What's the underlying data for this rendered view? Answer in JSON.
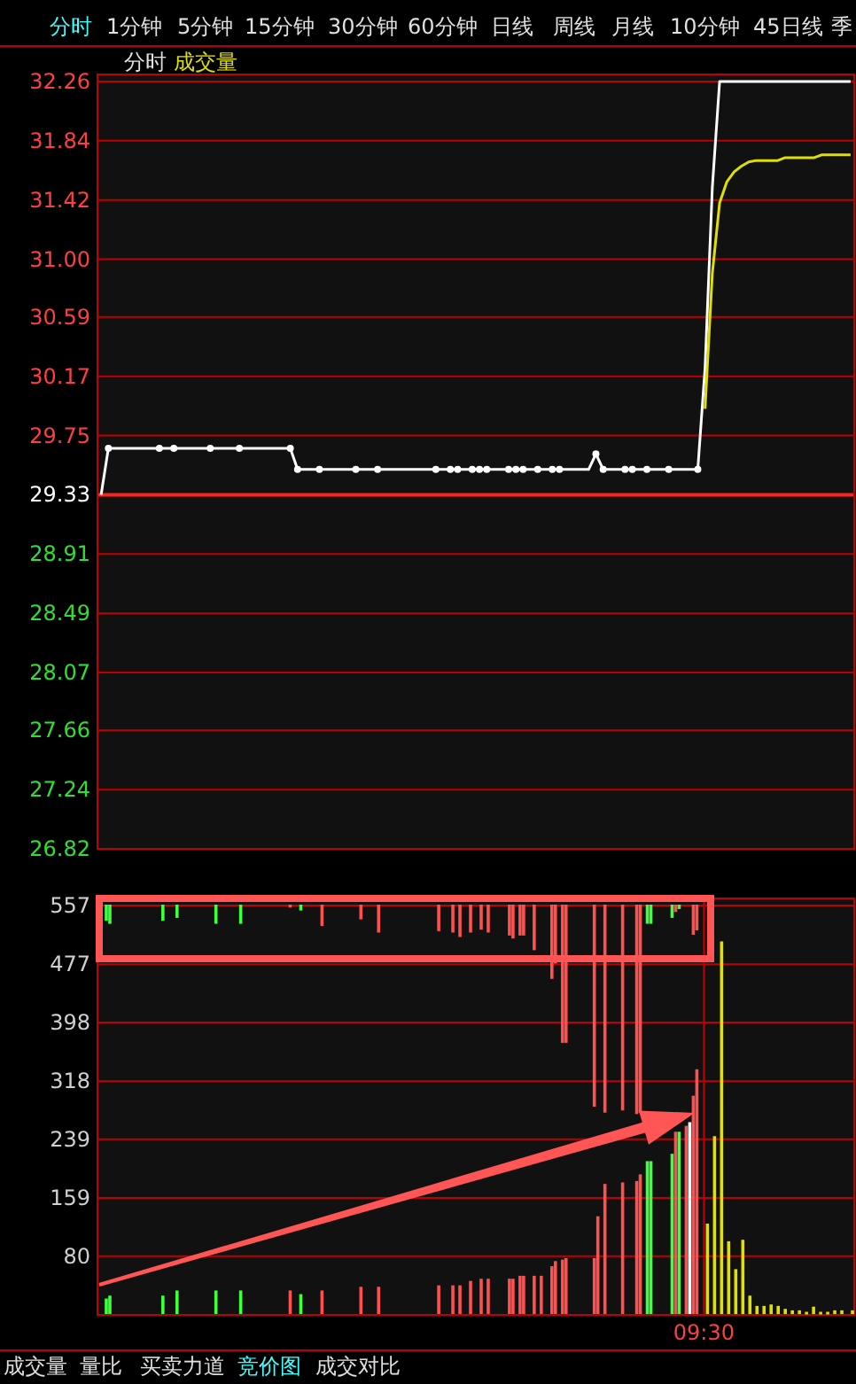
{
  "chart_data": [
    {
      "type": "line",
      "annotations": [
        "分时",
        "1分钟",
        "5分钟",
        "15分钟",
        "30分钟",
        "60分钟",
        "日线",
        "周线",
        "月线",
        "10分钟",
        "45日线",
        "季",
        "分时",
        "成交量",
        "成交量",
        "量比",
        "买卖力道",
        "竞价图",
        "成交对比"
      ],
      "categories": [
        null,
        null,
        null,
        null,
        null,
        null,
        null,
        null,
        null,
        null,
        null,
        null,
        null,
        null,
        null,
        null,
        null,
        null,
        null,
        null,
        null,
        null,
        null,
        null,
        null,
        null,
        null,
        null,
        null,
        null,
        null,
        null,
        null,
        null,
        null,
        null,
        null,
        null,
        null,
        null,
        null,
        null,
        null,
        null,
        null,
        null,
        null,
        null,
        null,
        null,
        null,
        null,
        null,
        null,
        null,
        null,
        null,
        null,
        null,
        null,
        null,
        null,
        null,
        null,
        null,
        null,
        null,
        null,
        null,
        null,
        null,
        null,
        null,
        null,
        null,
        null,
        null,
        null,
        null,
        null,
        null,
        null,
        null,
        null,
        null,
        null,
        null,
        null,
        null,
        null,
        null,
        null,
        null,
        null,
        null,
        null,
        null,
        null,
        null,
        null,
        null,
        null,
        null,
        null
      ],
      "ylim": [
        26.82,
        32.26
      ],
      "yticks": [
        26.82,
        27.24,
        27.66,
        28.07,
        28.49,
        28.91,
        29.33,
        29.75,
        30.17,
        30.59,
        {
          "value": 31,
          "label": "31.00"
        },
        31.42,
        31.84,
        32.26
      ],
      "tick_labels": "y",
      "grid": "y",
      "ref_lines": [
        {
          "axis": "y",
          "value": 29.33,
          "color": "#ff2020"
        }
      ],
      "series": [
        {
          "color": "#ffffff",
          "values": [
            29.33,
            29.66,
            29.66,
            29.66,
            29.66,
            29.66,
            29.66,
            29.66,
            29.66,
            29.66,
            29.66,
            29.66,
            29.66,
            29.66,
            29.66,
            29.66,
            29.66,
            29.66,
            29.66,
            29.66,
            29.66,
            29.66,
            29.66,
            29.66,
            29.66,
            29.66,
            29.66,
            29.51,
            29.51,
            29.51,
            29.51,
            29.51,
            29.51,
            29.51,
            29.51,
            29.51,
            29.51,
            29.51,
            29.51,
            29.51,
            29.51,
            29.51,
            29.51,
            29.51,
            29.51,
            29.51,
            29.51,
            29.51,
            29.51,
            29.51,
            29.51,
            29.51,
            29.51,
            29.51,
            29.51,
            29.51,
            29.51,
            29.51,
            29.51,
            29.51,
            29.51,
            29.51,
            29.51,
            29.51,
            29.51,
            29.51,
            29.51,
            29.51,
            29.62,
            29.51,
            29.51,
            29.51,
            29.51,
            29.51,
            29.51,
            29.51,
            29.51,
            29.51,
            29.51,
            29.51,
            29.51,
            29.51,
            29.51,
            30.23,
            31.51,
            32.26,
            32.26,
            32.26,
            32.26,
            32.26,
            32.26,
            32.26,
            32.26,
            32.26,
            32.26,
            32.26,
            32.26,
            32.26,
            32.26,
            32.26,
            32.26,
            32.26,
            32.26,
            32.26
          ]
        },
        {
          "type": "scatter",
          "marker": "circle",
          "color": "#ffffff",
          "values": [
            null,
            29.66,
            null,
            null,
            null,
            null,
            null,
            null,
            29.66,
            null,
            29.66,
            null,
            null,
            null,
            null,
            29.66,
            null,
            null,
            null,
            29.66,
            null,
            null,
            null,
            null,
            null,
            null,
            29.66,
            29.51,
            null,
            null,
            29.51,
            null,
            null,
            null,
            null,
            29.51,
            null,
            null,
            29.51,
            null,
            null,
            null,
            null,
            null,
            null,
            null,
            29.51,
            null,
            29.51,
            29.51,
            null,
            29.51,
            29.51,
            29.51,
            null,
            null,
            29.51,
            29.51,
            29.51,
            null,
            29.51,
            null,
            29.51,
            29.51,
            null,
            null,
            null,
            null,
            29.62,
            29.51,
            null,
            null,
            29.51,
            29.51,
            null,
            29.51,
            null,
            null,
            29.51,
            null,
            null,
            null,
            29.51,
            null,
            null,
            null,
            null,
            null,
            null,
            null,
            null,
            null,
            null,
            null,
            null,
            null,
            null,
            null,
            null,
            null,
            null,
            null,
            null,
            null
          ]
        },
        {
          "color": "#e0e000",
          "values": [
            null,
            null,
            null,
            null,
            null,
            null,
            null,
            null,
            null,
            null,
            null,
            null,
            null,
            null,
            null,
            null,
            null,
            null,
            null,
            null,
            null,
            null,
            null,
            null,
            null,
            null,
            null,
            null,
            null,
            null,
            null,
            null,
            null,
            null,
            null,
            null,
            null,
            null,
            null,
            null,
            null,
            null,
            null,
            null,
            null,
            null,
            null,
            null,
            null,
            null,
            null,
            null,
            null,
            null,
            null,
            null,
            null,
            null,
            null,
            null,
            null,
            null,
            null,
            null,
            null,
            null,
            null,
            null,
            null,
            null,
            null,
            null,
            null,
            null,
            null,
            null,
            null,
            null,
            null,
            null,
            null,
            null,
            null,
            29.94,
            30.9,
            31.4,
            31.55,
            31.62,
            31.66,
            31.69,
            31.7,
            31.7,
            31.7,
            31.7,
            31.72,
            31.72,
            31.72,
            31.72,
            31.72,
            31.74,
            31.74,
            31.74,
            31.74,
            31.74
          ]
        }
      ]
    },
    {
      "type": "bar",
      "categories": [
        null,
        null,
        null,
        null,
        null,
        null,
        null,
        null,
        null,
        null,
        null,
        null,
        null,
        null,
        null,
        null,
        null,
        null,
        null,
        null,
        null,
        null,
        null,
        null,
        null,
        null,
        null,
        null,
        null,
        null,
        null,
        null,
        null,
        null,
        null,
        null,
        null,
        null,
        null,
        null,
        null,
        null,
        null,
        null,
        null,
        null,
        null,
        null,
        null,
        null,
        null,
        null,
        null,
        null,
        null,
        null,
        null,
        null,
        null,
        null,
        null,
        null,
        null,
        null,
        null,
        null,
        null,
        null,
        null,
        null,
        null,
        null,
        null,
        null,
        null,
        null,
        null,
        null,
        null,
        null,
        null,
        null,
        null,
        null,
        null,
        null,
        null,
        null,
        null,
        null,
        null,
        null,
        null,
        null,
        null,
        null,
        null,
        null,
        null,
        null,
        null,
        null,
        null,
        null,
        null,
        null,
        null,
        null,
        null,
        null,
        null,
        null,
        null,
        null,
        null,
        null,
        null,
        null,
        null,
        null,
        null,
        null,
        null,
        null,
        null,
        null,
        null,
        null,
        null,
        null,
        null,
        null,
        null,
        null,
        null,
        null,
        null,
        null,
        null,
        null,
        null,
        null,
        null,
        null,
        null,
        null,
        null,
        null,
        null,
        null,
        null,
        null,
        null,
        null,
        null,
        null,
        null,
        null,
        null,
        null,
        null,
        null,
        null,
        null,
        null,
        null,
        null,
        null,
        null,
        null,
        null,
        "09:30",
        null,
        null,
        null,
        null,
        null,
        null,
        null,
        null,
        null,
        null,
        null,
        null,
        null,
        null,
        null,
        null,
        null,
        null,
        null,
        null,
        null,
        null,
        null,
        null,
        null,
        null,
        null,
        null,
        null,
        null,
        null,
        null,
        null,
        null,
        null,
        null,
        null,
        null,
        null,
        null,
        null,
        null
      ],
      "ylim": [
        0,
        557
      ],
      "yticks": [
        {
          "value": 0,
          "label": null
        },
        80,
        159,
        239,
        318,
        398,
        477,
        557
      ],
      "tick_labels": "xy",
      "grid": "y",
      "series": [
        {
          "values": [
            null,
            null,
            21,
            25,
            null,
            null,
            null,
            null,
            null,
            null,
            null,
            null,
            null,
            null,
            null,
            null,
            null,
            null,
            25,
            null,
            null,
            null,
            32,
            null,
            null,
            null,
            null,
            null,
            null,
            null,
            null,
            null,
            null,
            32,
            null,
            null,
            null,
            null,
            null,
            null,
            32,
            null,
            null,
            null,
            null,
            null,
            null,
            null,
            null,
            null,
            null,
            null,
            null,
            null,
            32,
            null,
            null,
            27,
            null,
            null,
            null,
            null,
            null,
            32,
            null,
            null,
            null,
            null,
            null,
            null,
            null,
            null,
            null,
            null,
            37,
            null,
            null,
            null,
            null,
            37,
            null,
            null,
            null,
            null,
            null,
            null,
            null,
            null,
            null,
            null,
            null,
            null,
            null,
            null,
            null,
            null,
            39,
            null,
            null,
            null,
            39,
            null,
            39,
            null,
            null,
            45,
            null,
            null,
            48,
            null,
            48,
            null,
            null,
            null,
            null,
            null,
            48,
            48,
            null,
            52,
            52,
            null,
            null,
            52,
            null,
            52,
            null,
            null,
            65,
            72,
            null,
            74,
            76,
            null,
            null,
            null,
            null,
            null,
            null,
            null,
            76,
            133,
            null,
            177,
            null,
            null,
            null,
            null,
            179,
            null,
            null,
            null,
            181,
            190,
            null,
            208,
            208,
            null,
            null,
            null,
            null,
            null,
            218,
            248,
            248,
            null,
            256,
            261,
            297,
            333,
            null,
            null,
            null,
            null,
            null,
            null,
            null,
            null,
            null,
            null,
            null,
            null,
            null,
            null,
            null,
            null,
            null,
            null,
            null,
            null,
            null,
            null,
            null,
            null,
            null,
            null,
            null,
            null,
            null,
            null,
            null,
            null,
            null,
            null,
            null,
            null,
            null,
            null,
            null,
            null,
            null,
            null,
            null,
            null
          ],
          "colors": [
            null,
            null,
            "#40ff40",
            "#40ff40",
            null,
            null,
            null,
            null,
            null,
            null,
            null,
            null,
            null,
            null,
            null,
            null,
            null,
            null,
            "#40ff40",
            null,
            null,
            null,
            "#40ff40",
            null,
            null,
            null,
            null,
            null,
            null,
            null,
            null,
            null,
            null,
            "#40ff40",
            null,
            null,
            null,
            null,
            null,
            null,
            "#40ff40",
            null,
            null,
            null,
            null,
            null,
            null,
            null,
            null,
            null,
            null,
            null,
            null,
            null,
            "#ff5050",
            null,
            null,
            "#40ff40",
            null,
            null,
            null,
            null,
            null,
            "#ff5050",
            null,
            null,
            null,
            null,
            null,
            null,
            null,
            null,
            null,
            null,
            "#ff5050",
            null,
            null,
            null,
            null,
            "#ff5050",
            null,
            null,
            null,
            null,
            null,
            null,
            null,
            null,
            null,
            null,
            null,
            null,
            null,
            null,
            null,
            null,
            "#ff5050",
            null,
            null,
            null,
            "#ff5050",
            null,
            "#ff5050",
            null,
            null,
            "#ff5050",
            null,
            null,
            "#ff5050",
            null,
            "#ff5050",
            null,
            null,
            null,
            null,
            null,
            "#ff5050",
            "#ff5050",
            null,
            "#ff5050",
            "#ff5050",
            null,
            null,
            "#ff5050",
            null,
            "#ff5050",
            null,
            null,
            "#ff5050",
            "#ff5050",
            null,
            "#ff5050",
            "#ff5050",
            null,
            null,
            null,
            null,
            null,
            null,
            null,
            "#ff5050",
            "#ff5050",
            null,
            "#ff5050",
            null,
            null,
            null,
            null,
            "#ff5050",
            null,
            null,
            null,
            "#ff5050",
            "#ff5050",
            null,
            "#40ff40",
            "#40ff40",
            null,
            null,
            null,
            null,
            null,
            "#40ff40",
            "#ff5050",
            "#40ff40",
            null,
            "#ff5050",
            "#ffffff",
            "#ff5050",
            "#ff5050",
            null,
            null,
            null,
            null,
            null,
            null,
            null,
            null,
            null,
            null,
            null,
            null,
            null,
            null,
            null,
            null,
            null,
            null,
            null,
            null,
            null,
            null,
            null,
            null,
            null,
            null,
            null,
            null,
            null,
            null,
            null,
            null,
            null,
            null,
            null,
            null,
            null,
            null,
            null,
            null,
            null,
            null,
            null,
            null
          ]
        },
        {
          "values": [
            null,
            null,
            -22,
            -26,
            null,
            null,
            null,
            null,
            null,
            null,
            null,
            null,
            null,
            null,
            null,
            null,
            null,
            null,
            -22,
            null,
            null,
            null,
            -18,
            null,
            null,
            null,
            null,
            null,
            null,
            null,
            null,
            null,
            null,
            -26,
            null,
            null,
            null,
            null,
            null,
            null,
            -26,
            null,
            null,
            null,
            null,
            null,
            null,
            null,
            null,
            null,
            null,
            null,
            null,
            null,
            -4,
            null,
            null,
            -8,
            null,
            null,
            null,
            null,
            null,
            -29,
            null,
            null,
            null,
            null,
            null,
            null,
            null,
            null,
            null,
            null,
            -20,
            null,
            null,
            null,
            null,
            -38,
            null,
            null,
            null,
            null,
            null,
            null,
            null,
            null,
            null,
            null,
            null,
            null,
            null,
            null,
            null,
            null,
            -36,
            null,
            null,
            null,
            -38,
            null,
            -44,
            null,
            null,
            -38,
            null,
            null,
            -34,
            null,
            -38,
            null,
            null,
            null,
            null,
            null,
            -42,
            -46,
            null,
            -42,
            -42,
            null,
            null,
            -62,
            null,
            null,
            null,
            null,
            -101,
            -80,
            null,
            -188,
            -188,
            null,
            null,
            null,
            null,
            null,
            null,
            null,
            -275,
            null,
            null,
            -283,
            null,
            null,
            null,
            null,
            -280,
            null,
            null,
            null,
            -285,
            -283,
            null,
            -26,
            -26,
            null,
            null,
            null,
            null,
            null,
            -18,
            -10,
            -6,
            null,
            null,
            null,
            -41,
            -35,
            null,
            null,
            null,
            null,
            null,
            null,
            null,
            null,
            null,
            null,
            null,
            null,
            null,
            null,
            null,
            null,
            null,
            null,
            null,
            null,
            null,
            null,
            null,
            null,
            null,
            null,
            null,
            null,
            null,
            null,
            null,
            null,
            null,
            null,
            null,
            null,
            null,
            null,
            null,
            null,
            null,
            null,
            null,
            null
          ],
          "base": [
            null,
            null,
            557,
            557,
            null,
            null,
            null,
            null,
            null,
            null,
            null,
            null,
            null,
            null,
            null,
            null,
            null,
            null,
            557,
            null,
            null,
            null,
            557,
            null,
            null,
            null,
            null,
            null,
            null,
            null,
            null,
            null,
            null,
            557,
            null,
            null,
            null,
            null,
            null,
            null,
            557,
            null,
            null,
            null,
            null,
            null,
            null,
            null,
            null,
            null,
            null,
            null,
            null,
            null,
            557,
            null,
            null,
            557,
            null,
            null,
            null,
            null,
            null,
            557,
            null,
            null,
            null,
            null,
            null,
            null,
            null,
            null,
            null,
            null,
            557,
            null,
            null,
            null,
            null,
            557,
            null,
            null,
            null,
            null,
            null,
            null,
            null,
            null,
            null,
            null,
            null,
            null,
            null,
            null,
            null,
            null,
            557,
            null,
            null,
            null,
            557,
            null,
            557,
            null,
            null,
            557,
            null,
            null,
            557,
            null,
            557,
            null,
            null,
            null,
            null,
            null,
            557,
            557,
            null,
            557,
            557,
            null,
            null,
            557,
            null,
            null,
            null,
            null,
            557,
            557,
            null,
            557,
            557,
            null,
            null,
            null,
            null,
            null,
            null,
            null,
            557,
            null,
            null,
            557,
            null,
            null,
            null,
            null,
            557,
            null,
            null,
            null,
            557,
            557,
            null,
            557,
            557,
            null,
            null,
            null,
            null,
            null,
            557,
            557,
            557,
            null,
            null,
            null,
            557,
            557,
            null,
            null,
            null,
            null,
            null,
            null,
            null,
            null,
            null,
            null,
            null,
            null,
            null,
            null,
            null,
            null,
            null,
            null,
            null,
            null,
            null,
            null,
            null,
            null,
            null,
            null,
            null,
            null,
            null,
            null,
            null,
            null,
            null,
            null,
            null,
            null,
            null,
            null,
            null,
            null,
            null,
            null,
            null,
            null
          ],
          "colors": [
            null,
            null,
            "#40ff40",
            "#40ff40",
            null,
            null,
            null,
            null,
            null,
            null,
            null,
            null,
            null,
            null,
            null,
            null,
            null,
            null,
            "#40ff40",
            null,
            null,
            null,
            "#40ff40",
            null,
            null,
            null,
            null,
            null,
            null,
            null,
            null,
            null,
            null,
            "#40ff40",
            null,
            null,
            null,
            null,
            null,
            null,
            "#40ff40",
            null,
            null,
            null,
            null,
            null,
            null,
            null,
            null,
            null,
            null,
            null,
            null,
            null,
            "#ff5050",
            null,
            null,
            "#40ff40",
            null,
            null,
            null,
            null,
            null,
            "#ff5050",
            null,
            null,
            null,
            null,
            null,
            null,
            null,
            null,
            null,
            null,
            "#ff5050",
            null,
            null,
            null,
            null,
            "#ff5050",
            null,
            null,
            null,
            null,
            null,
            null,
            null,
            null,
            null,
            null,
            null,
            null,
            null,
            null,
            null,
            null,
            "#ff5050",
            null,
            null,
            null,
            "#ff5050",
            null,
            "#ff5050",
            null,
            null,
            "#ff5050",
            null,
            null,
            "#ff5050",
            null,
            "#ff5050",
            null,
            null,
            null,
            null,
            null,
            "#ff5050",
            "#ff5050",
            null,
            "#ff5050",
            "#ff5050",
            null,
            null,
            "#ff5050",
            null,
            null,
            null,
            null,
            "#ff5050",
            "#ff5050",
            null,
            "#ff5050",
            "#ff5050",
            null,
            null,
            null,
            null,
            null,
            null,
            null,
            "#ff5050",
            null,
            null,
            "#ff5050",
            null,
            null,
            null,
            null,
            "#ff5050",
            null,
            null,
            null,
            "#ff5050",
            "#ff5050",
            null,
            "#40ff40",
            "#40ff40",
            null,
            null,
            null,
            null,
            null,
            "#40ff40",
            "#ff5050",
            "#40ff40",
            null,
            null,
            null,
            "#ff5050",
            "#ff5050",
            null,
            null,
            null,
            null,
            null,
            null,
            null,
            null,
            null,
            null,
            null,
            null,
            null,
            null,
            null,
            null,
            null,
            null,
            null,
            null,
            null,
            null,
            null,
            null,
            null,
            null,
            null,
            null,
            null,
            null,
            null,
            null,
            null,
            null,
            null,
            null,
            null,
            null,
            null,
            null,
            null,
            null,
            null,
            null
          ]
        },
        {
          "color": "#e0e000",
          "values": [
            null,
            null,
            null,
            null,
            null,
            null,
            null,
            null,
            null,
            null,
            null,
            null,
            null,
            null,
            null,
            null,
            null,
            null,
            null,
            null,
            null,
            null,
            null,
            null,
            null,
            null,
            null,
            null,
            null,
            null,
            null,
            null,
            null,
            null,
            null,
            null,
            null,
            null,
            null,
            null,
            null,
            null,
            null,
            null,
            null,
            null,
            null,
            null,
            null,
            null,
            null,
            null,
            null,
            null,
            null,
            null,
            null,
            null,
            null,
            null,
            null,
            null,
            null,
            null,
            null,
            null,
            null,
            null,
            null,
            null,
            null,
            null,
            null,
            null,
            null,
            null,
            null,
            null,
            null,
            null,
            null,
            null,
            null,
            null,
            null,
            null,
            null,
            null,
            null,
            null,
            null,
            null,
            null,
            null,
            null,
            null,
            null,
            null,
            null,
            null,
            null,
            null,
            null,
            null,
            null,
            null,
            null,
            null,
            null,
            null,
            null,
            null,
            null,
            null,
            null,
            null,
            null,
            null,
            null,
            null,
            null,
            null,
            null,
            null,
            null,
            null,
            null,
            null,
            null,
            null,
            null,
            null,
            null,
            null,
            null,
            null,
            null,
            null,
            null,
            null,
            null,
            null,
            null,
            null,
            null,
            null,
            null,
            null,
            null,
            null,
            null,
            null,
            null,
            null,
            null,
            null,
            null,
            null,
            null,
            null,
            null,
            null,
            null,
            null,
            null,
            null,
            null,
            null,
            null,
            null,
            null,
            null,
            123,
            null,
            242,
            null,
            507,
            null,
            99,
            null,
            61,
            null,
            101,
            null,
            25,
            null,
            11,
            null,
            11,
            null,
            13,
            null,
            11,
            null,
            7,
            null,
            5,
            null,
            5,
            null,
            3,
            null,
            10,
            null,
            3,
            null,
            3,
            null,
            5,
            null,
            5,
            null,
            null,
            5
          ]
        }
      ]
    }
  ]
}
